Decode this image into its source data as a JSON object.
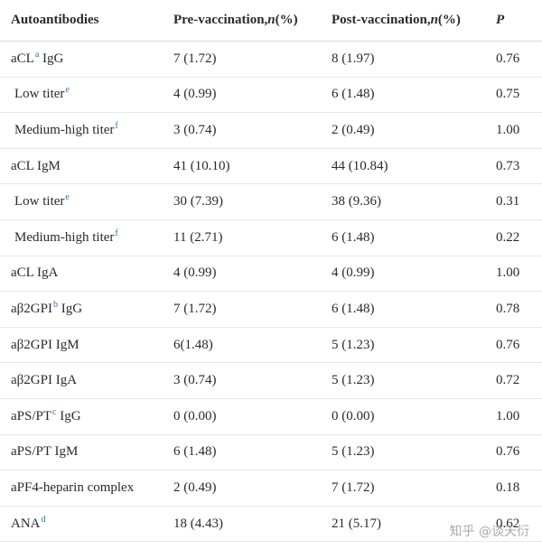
{
  "header": {
    "col0": "Autoantibodies",
    "col1_prefix": "Pre-vaccination, ",
    "col1_n": "n",
    "col1_suffix": " (%)",
    "col2_prefix": "Post-vaccination, ",
    "col2_n": "n",
    "col2_suffix": " (%)",
    "col3": "P"
  },
  "rows": [
    {
      "label": "aCL",
      "sup": "a",
      "after": " IgG",
      "pre": "7 (1.72)",
      "post": "8 (1.97)",
      "p": "0.76"
    },
    {
      "label": "Low titer",
      "sup": "e",
      "after": "",
      "pre": "4 (0.99)",
      "post": "6 (1.48)",
      "p": "0.75"
    },
    {
      "label": "Medium-high titer",
      "sup": "f",
      "after": "",
      "pre": "3 (0.74)",
      "post": "2 (0.49)",
      "p": "1.00"
    },
    {
      "label": "aCL IgM",
      "sup": "",
      "after": "",
      "pre": "41 (10.10)",
      "post": "44 (10.84)",
      "p": "0.73"
    },
    {
      "label": "Low titer",
      "sup": "e",
      "after": "",
      "pre": "30 (7.39)",
      "post": "38 (9.36)",
      "p": "0.31"
    },
    {
      "label": "Medium-high titer",
      "sup": "f",
      "after": "",
      "pre": "11 (2.71)",
      "post": "6 (1.48)",
      "p": "0.22"
    },
    {
      "label": "aCL IgA",
      "sup": "",
      "after": "",
      "pre": "4 (0.99)",
      "post": "4 (0.99)",
      "p": "1.00"
    },
    {
      "label": "aβ2GPI",
      "sup": "b",
      "after": " IgG",
      "pre": "7 (1.72)",
      "post": "6 (1.48)",
      "p": "0.78"
    },
    {
      "label": "aβ2GPI IgM",
      "sup": "",
      "after": "",
      "pre": "6(1.48)",
      "post": "5 (1.23)",
      "p": "0.76"
    },
    {
      "label": "aβ2GPI IgA",
      "sup": "",
      "after": "",
      "pre": "3 (0.74)",
      "post": "5 (1.23)",
      "p": "0.72"
    },
    {
      "label": "aPS/PT",
      "sup": "c",
      "after": " IgG",
      "pre": "0 (0.00)",
      "post": "0 (0.00)",
      "p": "1.00"
    },
    {
      "label": "aPS/PT IgM",
      "sup": "",
      "after": "",
      "pre": "6 (1.48)",
      "post": "5 (1.23)",
      "p": "0.76"
    },
    {
      "label": "aPF4-heparin complex",
      "sup": "",
      "after": "",
      "pre": "2 (0.49)",
      "post": "7 (1.72)",
      "p": "0.18"
    },
    {
      "label": "ANA",
      "sup": "d",
      "after": "",
      "pre": "18 (4.43)",
      "post": "21 (5.17)",
      "p": "0.62"
    }
  ],
  "watermark": "知乎 @谈天衍"
}
